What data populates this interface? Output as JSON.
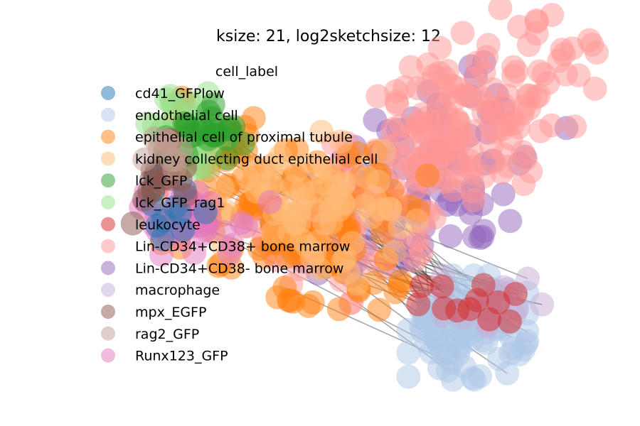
{
  "chart_data": {
    "type": "scatter",
    "title": "ksize: 21, log2sketchsize: 12",
    "xlabel": "",
    "ylabel": "",
    "axes_visible": false,
    "grid": false,
    "legend": {
      "title": "cell_label",
      "placement": "upper-left, overlapping plot",
      "entries": [
        {
          "label": "cd41_GFPlow",
          "color": "#1f77b4"
        },
        {
          "label": "endothelial cell",
          "color": "#aec7e8"
        },
        {
          "label": "epithelial cell of proximal tubule",
          "color": "#ff7f0e"
        },
        {
          "label": "kidney collecting duct epithelial cell",
          "color": "#ffbb78"
        },
        {
          "label": "lck_GFP",
          "color": "#2ca02c"
        },
        {
          "label": "lck_GFP_rag1",
          "color": "#98df8a"
        },
        {
          "label": "leukocyte",
          "color": "#d62728"
        },
        {
          "label": "Lin-CD34+CD38+ bone marrow",
          "color": "#ff9896"
        },
        {
          "label": "Lin-CD34+CD38- bone marrow",
          "color": "#9467bd"
        },
        {
          "label": "macrophage",
          "color": "#c5b0d5"
        },
        {
          "label": "mpx_EGFP",
          "color": "#8c564b"
        },
        {
          "label": "rag2_GFP",
          "color": "#c49c94"
        },
        {
          "label": "Runx123_GFP",
          "color": "#e377c2"
        }
      ]
    },
    "clusters": [
      {
        "label": "Lin-CD34+CD38- bone marrow",
        "color": "#9467bd",
        "cx": 6.4,
        "cy": 3.6,
        "sx": 1.5,
        "sy": 0.9,
        "angle": 32,
        "n": 90
      },
      {
        "label": "Lin-CD34+CD38+ bone marrow",
        "color": "#ff9896",
        "cx": 6.6,
        "cy": 4.2,
        "sx": 1.9,
        "sy": 0.8,
        "angle": 32,
        "n": 230
      },
      {
        "label": "epithelial cell of proximal tubule",
        "color": "#ff7f0e",
        "cx": 3.6,
        "cy": 3.0,
        "sx": 0.8,
        "sy": 1.3,
        "angle": 75,
        "n": 150
      },
      {
        "label": "kidney collecting duct epithelial cell",
        "color": "#ffbb78",
        "cx": 4.3,
        "cy": 3.2,
        "sx": 0.7,
        "sy": 1.0,
        "angle": 80,
        "n": 70
      },
      {
        "label": "endothelial cell",
        "color": "#aec7e8",
        "cx": 7.3,
        "cy": 0.8,
        "sx": 0.6,
        "sy": 0.5,
        "angle": 0,
        "n": 90
      },
      {
        "label": "macrophage",
        "color": "#c5b0d5",
        "cx": 7.8,
        "cy": 1.3,
        "sx": 0.5,
        "sy": 0.3,
        "angle": 0,
        "n": 18
      },
      {
        "label": "leukocyte",
        "color": "#d62728",
        "cx": 7.5,
        "cy": 1.3,
        "sx": 0.6,
        "sy": 0.2,
        "angle": 0,
        "n": 12
      },
      {
        "label": "Runx123_GFP",
        "color": "#e377c2",
        "cx": 1.9,
        "cy": 2.8,
        "sx": 0.3,
        "sy": 0.7,
        "angle": 90,
        "n": 40
      },
      {
        "label": "lck_GFP_rag1",
        "color": "#98df8a",
        "cx": 1.6,
        "cy": 4.5,
        "sx": 0.6,
        "sy": 0.4,
        "angle": 0,
        "n": 40
      },
      {
        "label": "lck_GFP",
        "color": "#2ca02c",
        "cx": 2.0,
        "cy": 4.6,
        "sx": 0.4,
        "sy": 0.3,
        "angle": 0,
        "n": 25
      },
      {
        "label": "cd41_GFPlow",
        "color": "#1f77b4",
        "cx": 1.4,
        "cy": 3.1,
        "sx": 0.4,
        "sy": 0.3,
        "angle": 0,
        "n": 12
      },
      {
        "label": "mpx_EGFP",
        "color": "#8c564b",
        "cx": 1.0,
        "cy": 3.6,
        "sx": 0.3,
        "sy": 0.4,
        "angle": 0,
        "n": 15
      },
      {
        "label": "rag2_GFP",
        "color": "#c49c94",
        "cx": 1.2,
        "cy": 4.0,
        "sx": 0.3,
        "sy": 0.3,
        "angle": 0,
        "n": 10
      }
    ],
    "xlim": [
      0,
      9.2
    ],
    "ylim": [
      0,
      6
    ],
    "edges_count": 45,
    "edge_color": "#333333"
  }
}
